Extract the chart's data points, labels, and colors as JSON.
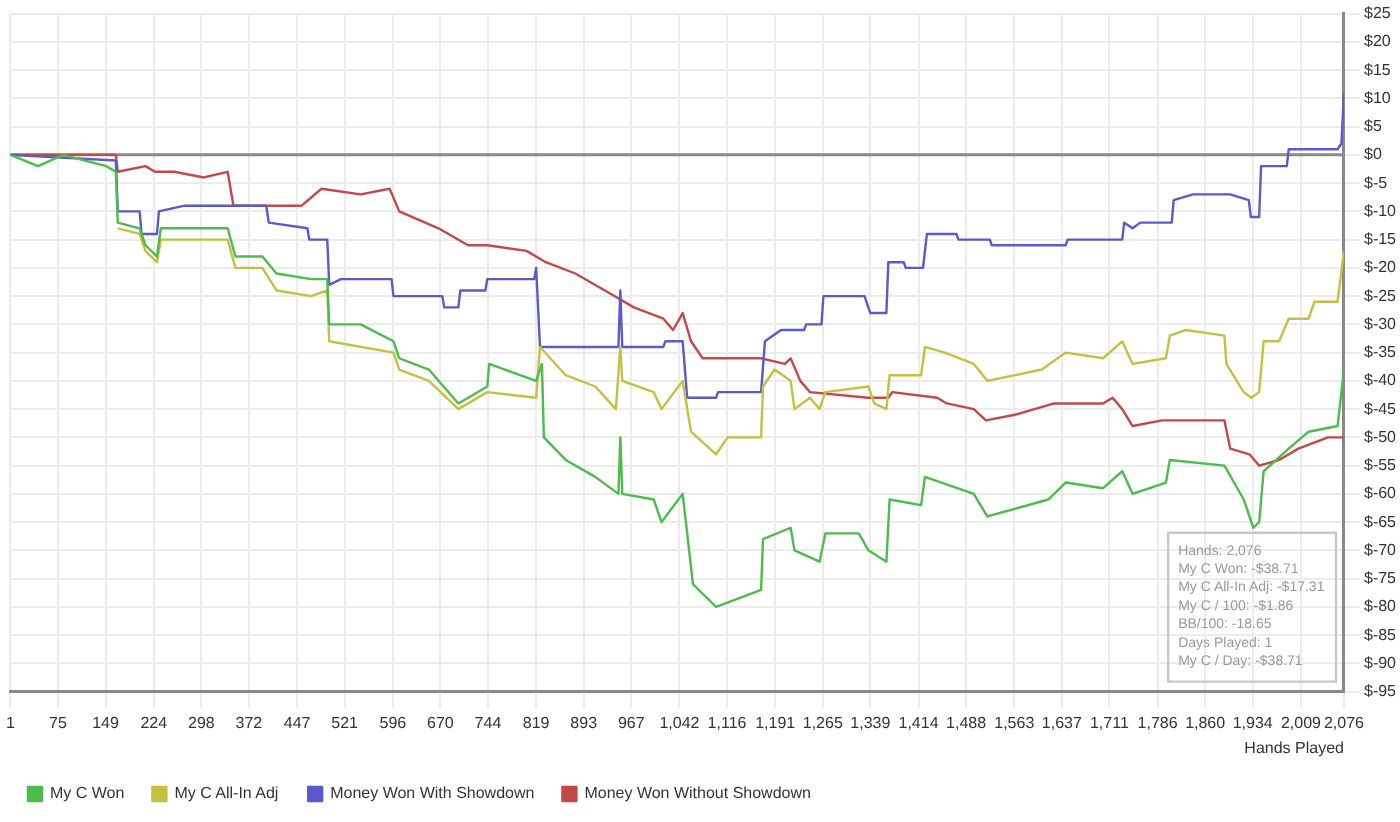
{
  "chart_data": {
    "type": "line",
    "xlabel": "Hands Played",
    "xlim": [
      1,
      2076
    ],
    "xticks": [
      1,
      75,
      149,
      224,
      298,
      372,
      447,
      521,
      596,
      670,
      744,
      819,
      893,
      967,
      {
        "value": 1042,
        "label": "1,042"
      },
      {
        "value": 1116,
        "label": "1,116"
      },
      {
        "value": 1191,
        "label": "1,191"
      },
      {
        "value": 1265,
        "label": "1,265"
      },
      {
        "value": 1339,
        "label": "1,339"
      },
      {
        "value": 1414,
        "label": "1,414"
      },
      {
        "value": 1488,
        "label": "1,488"
      },
      {
        "value": 1563,
        "label": "1,563"
      },
      {
        "value": 1637,
        "label": "1,637"
      },
      {
        "value": 1711,
        "label": "1,711"
      },
      {
        "value": 1786,
        "label": "1,786"
      },
      {
        "value": 1860,
        "label": "1,860"
      },
      {
        "value": 1934,
        "label": "1,934"
      },
      {
        "value": 2009,
        "label": "2,009"
      },
      {
        "value": 2076,
        "label": "2,076"
      }
    ],
    "ylim": [
      -95,
      25
    ],
    "yticks": [
      {
        "value": -95,
        "label": "$-95"
      },
      {
        "value": -90,
        "label": "$-90"
      },
      {
        "value": -85,
        "label": "$-85"
      },
      {
        "value": -80,
        "label": "$-80"
      },
      {
        "value": -75,
        "label": "$-75"
      },
      {
        "value": -70,
        "label": "$-70"
      },
      {
        "value": -65,
        "label": "$-65"
      },
      {
        "value": -60,
        "label": "$-60"
      },
      {
        "value": -55,
        "label": "$-55"
      },
      {
        "value": -50,
        "label": "$-50"
      },
      {
        "value": -45,
        "label": "$-45"
      },
      {
        "value": -40,
        "label": "$-40"
      },
      {
        "value": -35,
        "label": "$-35"
      },
      {
        "value": -30,
        "label": "$-30"
      },
      {
        "value": -25,
        "label": "$-25"
      },
      {
        "value": -20,
        "label": "$-20"
      },
      {
        "value": -15,
        "label": "$-15"
      },
      {
        "value": -10,
        "label": "$-10"
      },
      {
        "value": -5,
        "label": "$-5"
      },
      {
        "value": 0,
        "label": "$0"
      },
      {
        "value": 5,
        "label": "$5"
      },
      {
        "value": 10,
        "label": "$10"
      },
      {
        "value": 15,
        "label": "$15"
      },
      {
        "value": 20,
        "label": "$20"
      },
      {
        "value": 25,
        "label": "$25"
      }
    ],
    "grid": true,
    "legend": "bottom",
    "marker": "none",
    "line_style": "solid",
    "ref_lines": [
      {
        "axis": "y",
        "value": 0,
        "color": "#8a8a8a"
      }
    ],
    "series": [
      {
        "name": "My C Won",
        "color": "#4cbc4c",
        "x": [
          1,
          44,
          83,
          150,
          165,
          168,
          202,
          211,
          229,
          235,
          272,
          339,
          351,
          393,
          415,
          469,
          494,
          497,
          546,
          597,
          606,
          652,
          698,
          743,
          746,
          819,
          828,
          831,
          865,
          911,
          947,
          950,
          953,
          1002,
          1014,
          1047,
          1063,
          1099,
          1169,
          1172,
          1215,
          1221,
          1260,
          1269,
          1321,
          1336,
          1364,
          1369,
          1418,
          1424,
          1500,
          1521,
          1616,
          1643,
          1701,
          1731,
          1747,
          1799,
          1805,
          1890,
          1920,
          1935,
          1944,
          1951,
          1990,
          2021,
          2066,
          2076
        ],
        "values": [
          0,
          -2,
          0,
          -2,
          -3,
          -12,
          -13,
          -16,
          -18,
          -13,
          -13,
          -13,
          -18,
          -18,
          -21,
          -22,
          -22,
          -30,
          -30,
          -33,
          -36,
          -38,
          -44,
          -41,
          -37,
          -40,
          -37,
          -50,
          -54,
          -57,
          -60,
          -50,
          -60,
          -61,
          -65,
          -60,
          -76,
          -80,
          -77,
          -68,
          -66,
          -70,
          -72,
          -67,
          -67,
          -70,
          -72,
          -61,
          -62,
          -57,
          -60,
          -64,
          -61,
          -58,
          -59,
          -56,
          -60,
          -58,
          -54,
          -55,
          -61,
          -66,
          -65,
          -56,
          -52,
          -49,
          -48,
          -38
        ]
      },
      {
        "name": "My C All-In Adj",
        "color": "#c4c042",
        "x": [
          168,
          202,
          211,
          229,
          235,
          339,
          351,
          393,
          415,
          469,
          494,
          497,
          597,
          606,
          652,
          698,
          743,
          819,
          825,
          865,
          911,
          943,
          950,
          953,
          1002,
          1014,
          1047,
          1060,
          1099,
          1117,
          1169,
          1172,
          1190,
          1215,
          1221,
          1245,
          1260,
          1269,
          1336,
          1345,
          1364,
          1369,
          1418,
          1424,
          1455,
          1500,
          1521,
          1606,
          1643,
          1701,
          1731,
          1747,
          1799,
          1805,
          1830,
          1890,
          1893,
          1920,
          1932,
          1944,
          1951,
          1975,
          1990,
          2021,
          2030,
          2066,
          2076
        ],
        "values": [
          -13,
          -14,
          -17,
          -19,
          -15,
          -15,
          -20,
          -20,
          -24,
          -25,
          -24,
          -33,
          -35,
          -38,
          -40,
          -45,
          -42,
          -43,
          -34,
          -39,
          -41,
          -45,
          -34,
          -40,
          -42,
          -45,
          -40,
          -49,
          -53,
          -50,
          -50,
          -41,
          -38,
          -40,
          -45,
          -43,
          -45,
          -42,
          -41,
          -44,
          -45,
          -39,
          -39,
          -34,
          -35,
          -37,
          -40,
          -38,
          -35,
          -36,
          -33,
          -37,
          -36,
          -32,
          -31,
          -32,
          -37,
          -42,
          -43,
          -42,
          -33,
          -33,
          -29,
          -29,
          -26,
          -26,
          -17
        ]
      },
      {
        "name": "Money Won With Showdown",
        "color": "#5a5acf",
        "x": [
          1,
          165,
          168,
          202,
          205,
          229,
          232,
          272,
          399,
          403,
          463,
          466,
          494,
          497,
          515,
          594,
          597,
          673,
          676,
          698,
          701,
          740,
          743,
          816,
          819,
          825,
          947,
          950,
          953,
          1017,
          1020,
          1047,
          1054,
          1099,
          1102,
          1169,
          1175,
          1200,
          1236,
          1239,
          1263,
          1266,
          1330,
          1339,
          1364,
          1367,
          1391,
          1394,
          1421,
          1427,
          1473,
          1476,
          1525,
          1528,
          1643,
          1646,
          1731,
          1734,
          1747,
          1759,
          1808,
          1811,
          1841,
          1899,
          1928,
          1931,
          1944,
          1947,
          1987,
          1990,
          2066,
          2072,
          2076
        ],
        "values": [
          0,
          -1,
          -10,
          -10,
          -14,
          -14,
          -10,
          -9,
          -9,
          -12,
          -13,
          -15,
          -15,
          -23,
          -22,
          -22,
          -25,
          -25,
          -27,
          -27,
          -24,
          -24,
          -22,
          -22,
          -20,
          -34,
          -34,
          -24,
          -34,
          -34,
          -33,
          -33,
          -43,
          -43,
          -42,
          -42,
          -33,
          -31,
          -31,
          -30,
          -30,
          -25,
          -25,
          -28,
          -28,
          -19,
          -19,
          -20,
          -20,
          -14,
          -14,
          -15,
          -15,
          -16,
          -16,
          -15,
          -15,
          -12,
          -13,
          -12,
          -12,
          -8,
          -7,
          -7,
          -8,
          -11,
          -11,
          -2,
          -2,
          1,
          1,
          2,
          11
        ]
      },
      {
        "name": "Money Won Without Showdown",
        "color": "#c44848",
        "x": [
          1,
          165,
          168,
          211,
          226,
          256,
          302,
          339,
          348,
          393,
          454,
          485,
          546,
          591,
          606,
          667,
          713,
          743,
          804,
          834,
          880,
          926,
          971,
          1017,
          1032,
          1047,
          1060,
          1078,
          1130,
          1169,
          1206,
          1215,
          1230,
          1245,
          1336,
          1367,
          1373,
          1443,
          1458,
          1500,
          1519,
          1564,
          1625,
          1701,
          1716,
          1731,
          1747,
          1793,
          1890,
          1899,
          1929,
          1944,
          1975,
          2005,
          2051,
          2076
        ],
        "values": [
          0,
          0,
          -3,
          -2,
          -3,
          -3,
          -4,
          -3,
          -9,
          -9,
          -9,
          -6,
          -7,
          -6,
          -10,
          -13,
          -16,
          -16,
          -17,
          -19,
          -21,
          -24,
          -27,
          -29,
          -31,
          -28,
          -33,
          -36,
          -36,
          -36,
          -37,
          -36,
          -40,
          -42,
          -43,
          -43,
          -42,
          -43,
          -44,
          -45,
          -47,
          -46,
          -44,
          -44,
          -43,
          -45,
          -48,
          -47,
          -47,
          -52,
          -53,
          -55,
          -54,
          -52,
          -50,
          -50
        ]
      }
    ],
    "annotations": [
      "Hands: 2,076",
      "My C Won: -$38.71",
      "My C All-In Adj: -$17.31",
      "My C / 100: -$1.86",
      "BB/100: -18.65",
      "Days Played: 1",
      "My C / Day: -$38.71"
    ]
  }
}
